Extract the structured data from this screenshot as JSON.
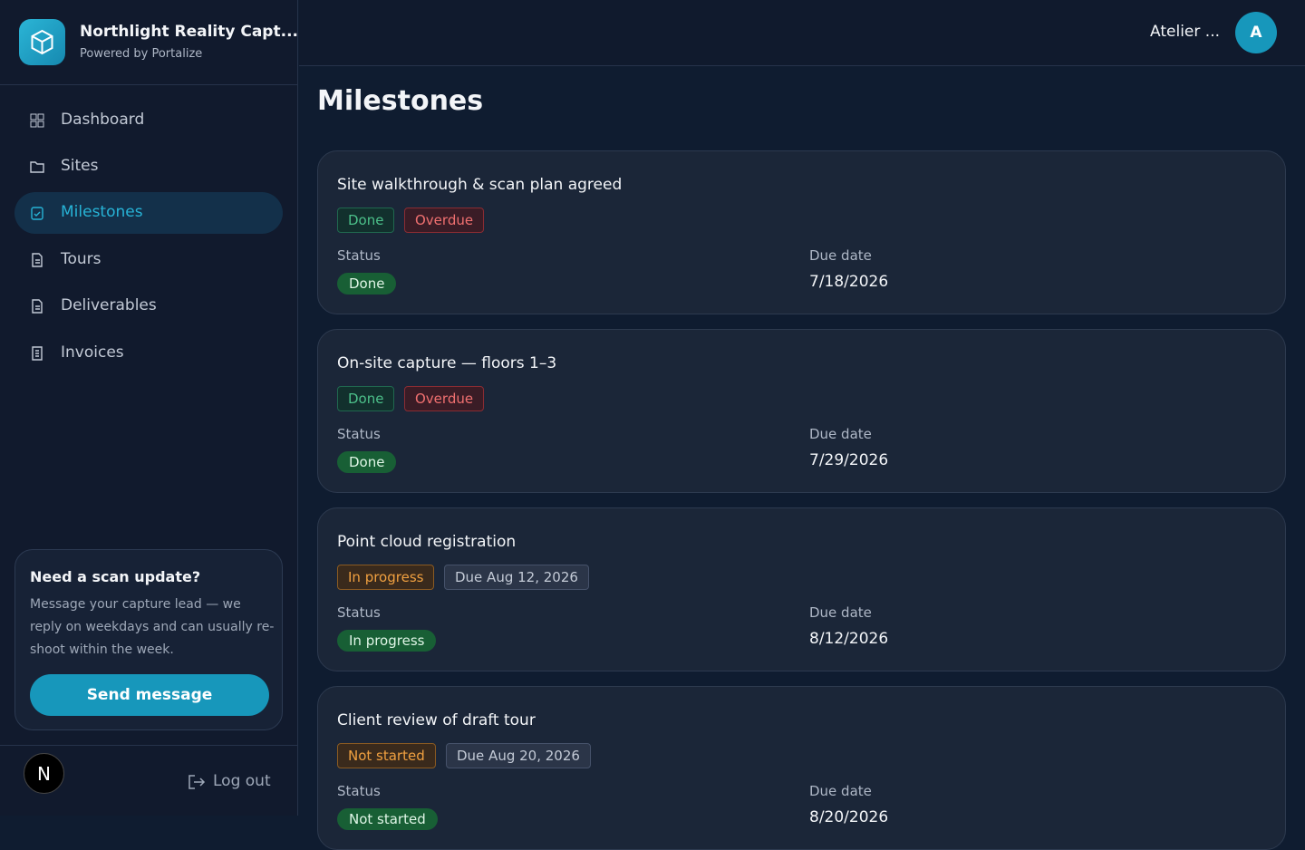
{
  "sidebar": {
    "brand": {
      "name": "Northlight Reality Capt...",
      "subtitle": "Powered by Portalize"
    },
    "nav": [
      "Dashboard",
      "Sites",
      "Milestones",
      "Tours",
      "Deliverables",
      "Invoices"
    ],
    "help": {
      "title": "Need a scan update?",
      "text": "Message your capture lead — we reply on weekdays and can usually re-shoot within the week.",
      "button": "Send message"
    },
    "footer": {
      "avatar": "N",
      "logout": "Log out"
    }
  },
  "header": {
    "user": "Atelier ...",
    "avatar": "A"
  },
  "page": {
    "title": "Milestones",
    "cards": [
      {
        "title": "Site walkthrough & scan plan agreed",
        "badges": [
          "Done",
          "Overdue"
        ],
        "status_label": "Status",
        "status": "Done",
        "due_label": "Due date",
        "due": "7/18/2026"
      },
      {
        "title": "On-site capture — floors 1–3",
        "badges": [
          "Done",
          "Overdue"
        ],
        "status_label": "Status",
        "status": "Done",
        "due_label": "Due date",
        "due": "7/29/2026"
      },
      {
        "title": "Point cloud registration",
        "badges": [
          "In progress",
          "Due Aug 12, 2026"
        ],
        "status_label": "Status",
        "status": "In progress",
        "due_label": "Due date",
        "due": "8/12/2026"
      },
      {
        "title": "Client review of draft tour",
        "badges": [
          "Not started",
          "Due Aug 20, 2026"
        ],
        "status_label": "Status",
        "status": "Not started",
        "due_label": "Due date",
        "due": "8/20/2026"
      }
    ]
  }
}
